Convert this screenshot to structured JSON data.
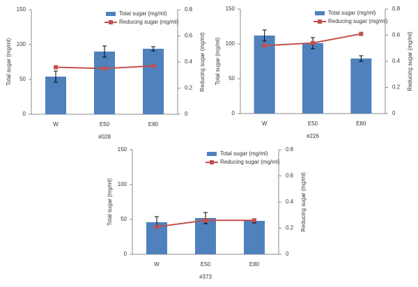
{
  "chart_data": [
    {
      "type": "combo",
      "xlabel": "#028",
      "ylabel": "Total sugar (mg/ml)",
      "y2label": "Reducing sugar (mg/ml)",
      "categories": [
        "W",
        "E50",
        "E80"
      ],
      "ylim": [
        0,
        150
      ],
      "yticks": [
        0,
        50,
        100,
        150
      ],
      "y2lim": [
        0,
        0.8
      ],
      "y2ticks": [
        0,
        0.2,
        0.4,
        0.6,
        0.8
      ],
      "series": [
        {
          "name": "Total sugar (mg/ml)",
          "color": "#4f81bd",
          "values": [
            54,
            90,
            94
          ],
          "errors": [
            8,
            8,
            3
          ]
        },
        {
          "name": "Reducing sugar (mg/ml)",
          "color": "#c0504d",
          "axis": "y2",
          "values": [
            0.36,
            0.35,
            0.37
          ]
        }
      ]
    },
    {
      "type": "combo",
      "xlabel": "#226",
      "ylabel": "Total sugar (mg/ml)",
      "y2label": "Reducing sugar (mg/ml)",
      "categories": [
        "W",
        "E50",
        "E80"
      ],
      "ylim": [
        0,
        150
      ],
      "yticks": [
        0,
        50,
        100,
        150
      ],
      "y2lim": [
        0,
        0.8
      ],
      "y2ticks": [
        0,
        0.2,
        0.4,
        0.6,
        0.8
      ],
      "series": [
        {
          "name": "Total sugar (mg/ml)",
          "color": "#4f81bd",
          "values": [
            112,
            101,
            79
          ],
          "errors": [
            8,
            8,
            4
          ]
        },
        {
          "name": "Reducing sugar (mg/ml)",
          "color": "#c0504d",
          "axis": "y2",
          "values": [
            0.52,
            0.54,
            0.61
          ]
        }
      ]
    },
    {
      "type": "combo",
      "xlabel": "#373",
      "ylabel": "Total sugar (mg/ml)",
      "y2label": "Reducing sugar (mg/ml)",
      "categories": [
        "W",
        "E50",
        "E80"
      ],
      "ylim": [
        0,
        150
      ],
      "yticks": [
        0,
        50,
        100,
        150
      ],
      "y2lim": [
        0,
        0.8
      ],
      "y2ticks": [
        0,
        0.2,
        0.4,
        0.6,
        0.8
      ],
      "series": [
        {
          "name": "Total sugar (mg/ml)",
          "color": "#4f81bd",
          "values": [
            46,
            52,
            48
          ],
          "errors": [
            8,
            8,
            3
          ]
        },
        {
          "name": "Reducing sugar (mg/ml)",
          "color": "#c0504d",
          "axis": "y2",
          "values": [
            0.21,
            0.26,
            0.26
          ]
        }
      ]
    }
  ]
}
